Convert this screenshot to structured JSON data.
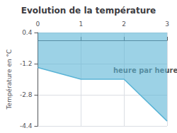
{
  "chart_data": {
    "type": "area",
    "title": "Evolution de la température",
    "ylabel": "Température en °C",
    "x": [
      0,
      1,
      2,
      3
    ],
    "values": [
      -1.4,
      -2.0,
      -2.0,
      -4.15
    ],
    "fill_to": 0.4,
    "color": "#5ab4d6",
    "xlim": [
      0,
      3
    ],
    "xticks": [
      0,
      1,
      2,
      3
    ],
    "ylim": [
      -4.4,
      0.4
    ],
    "yticks": [
      0.4,
      -1.2,
      -2.8,
      -4.4
    ],
    "grid": true,
    "annotations": [
      {
        "text": "heure par heure",
        "x": 1.75,
        "y": -1.55
      }
    ]
  }
}
